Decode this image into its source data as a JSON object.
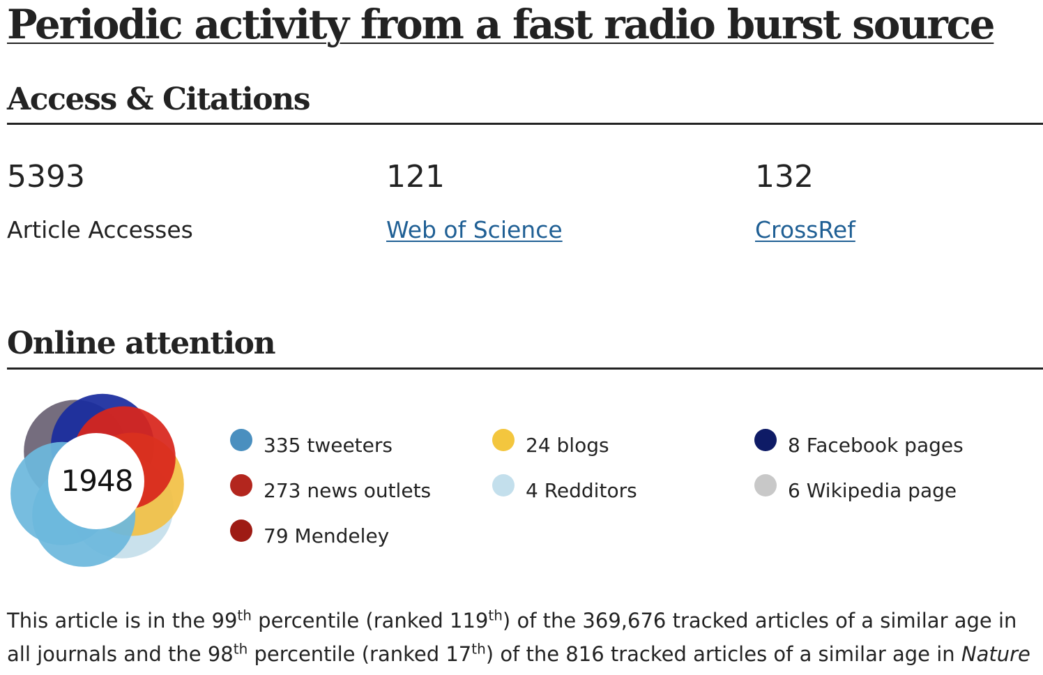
{
  "title": "Periodic activity from a fast radio burst source",
  "access_section": {
    "heading": "Access & Citations",
    "metrics": [
      {
        "value": "5393",
        "label": "Article Accesses",
        "link": false
      },
      {
        "value": "121",
        "label": "Web of Science",
        "link": true
      },
      {
        "value": "132",
        "label": "CrossRef",
        "link": true
      }
    ]
  },
  "attention_section": {
    "heading": "Online attention",
    "score": "1948",
    "donut_colors": {
      "twitter": "#6db8dd",
      "news": "#d8261c",
      "mendeley": "#a31a12",
      "blogs": "#f2c146",
      "reddit": "#c5dfeb",
      "facebook": "#1a2c9e",
      "wikipedia": "#6b6274"
    },
    "legend": [
      {
        "text": "335 tweeters",
        "color": "#4a8fbf"
      },
      {
        "text": "273 news outlets",
        "color": "#b3261e"
      },
      {
        "text": "79 Mendeley",
        "color": "#9e1b14"
      },
      {
        "text": "24 blogs",
        "color": "#f3c63e"
      },
      {
        "text": "4 Redditors",
        "color": "#c3dfec"
      },
      {
        "text": "8 Facebook pages",
        "color": "#0e1b66"
      },
      {
        "text": "6 Wikipedia page",
        "color": "#c8c8c8"
      }
    ]
  },
  "percentile": {
    "p1": "This article is in the 99",
    "s1": "th",
    "p2": " percentile (ranked 119",
    "s2": "th",
    "p3": ") of the 369,676 tracked articles of a similar age in all journals and the 98",
    "s3": "th",
    "p4": " percentile (ranked 17",
    "s4": "th",
    "p5": ") of the 816 tracked articles of a similar age in ",
    "journal": "Nature"
  }
}
